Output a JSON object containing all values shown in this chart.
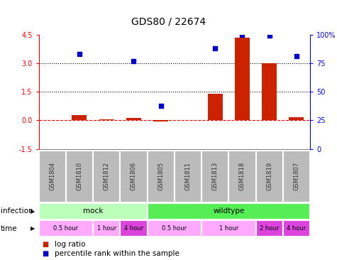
{
  "title": "GDS80 / 22674",
  "samples": [
    "GSM1804",
    "GSM1810",
    "GSM1812",
    "GSM1806",
    "GSM1805",
    "GSM1811",
    "GSM1813",
    "GSM1818",
    "GSM1819",
    "GSM1807"
  ],
  "log_ratio": [
    0.0,
    0.28,
    0.05,
    0.12,
    -0.05,
    0.0,
    1.4,
    4.35,
    2.98,
    0.18
  ],
  "percentile_right": [
    null,
    83,
    null,
    77,
    38,
    null,
    88,
    100,
    99,
    81
  ],
  "ylim_left": [
    -1.5,
    4.5
  ],
  "ylim_right": [
    0,
    100
  ],
  "hline_values": [
    0.0,
    1.5,
    3.0
  ],
  "hline_styles": [
    "dashed",
    "dotted",
    "dotted"
  ],
  "hline_colors": [
    "red",
    "black",
    "black"
  ],
  "bar_color": "#cc2200",
  "scatter_color": "#0000cc",
  "left_ticks": [
    -1.5,
    0.0,
    1.5,
    3.0,
    4.5
  ],
  "right_ticks": [
    0,
    25,
    50,
    75,
    100
  ],
  "right_tick_labels": [
    "0",
    "25",
    "50",
    "75",
    "100%"
  ],
  "infection_groups": [
    {
      "label": "mock",
      "start": 0,
      "end": 4,
      "color": "#bbffbb"
    },
    {
      "label": "wildtype",
      "start": 4,
      "end": 10,
      "color": "#55ee55"
    }
  ],
  "time_groups": [
    {
      "label": "0.5 hour",
      "start": 0,
      "end": 2,
      "color": "#ffaaff"
    },
    {
      "label": "1 hour",
      "start": 2,
      "end": 3,
      "color": "#ffaaff"
    },
    {
      "label": "4 hour",
      "start": 3,
      "end": 4,
      "color": "#dd44dd"
    },
    {
      "label": "0.5 hour",
      "start": 4,
      "end": 6,
      "color": "#ffaaff"
    },
    {
      "label": "1 hour",
      "start": 6,
      "end": 8,
      "color": "#ffaaff"
    },
    {
      "label": "2 hour",
      "start": 8,
      "end": 9,
      "color": "#dd44dd"
    },
    {
      "label": "4 hour",
      "start": 9,
      "end": 10,
      "color": "#dd44dd"
    }
  ],
  "bg_color": "#ffffff",
  "sample_box_color": "#bbbbbb",
  "sample_text_color": "#333333",
  "title_fontsize": 10,
  "tick_fontsize": 7,
  "label_fontsize": 7.5,
  "legend_fontsize": 7.5
}
